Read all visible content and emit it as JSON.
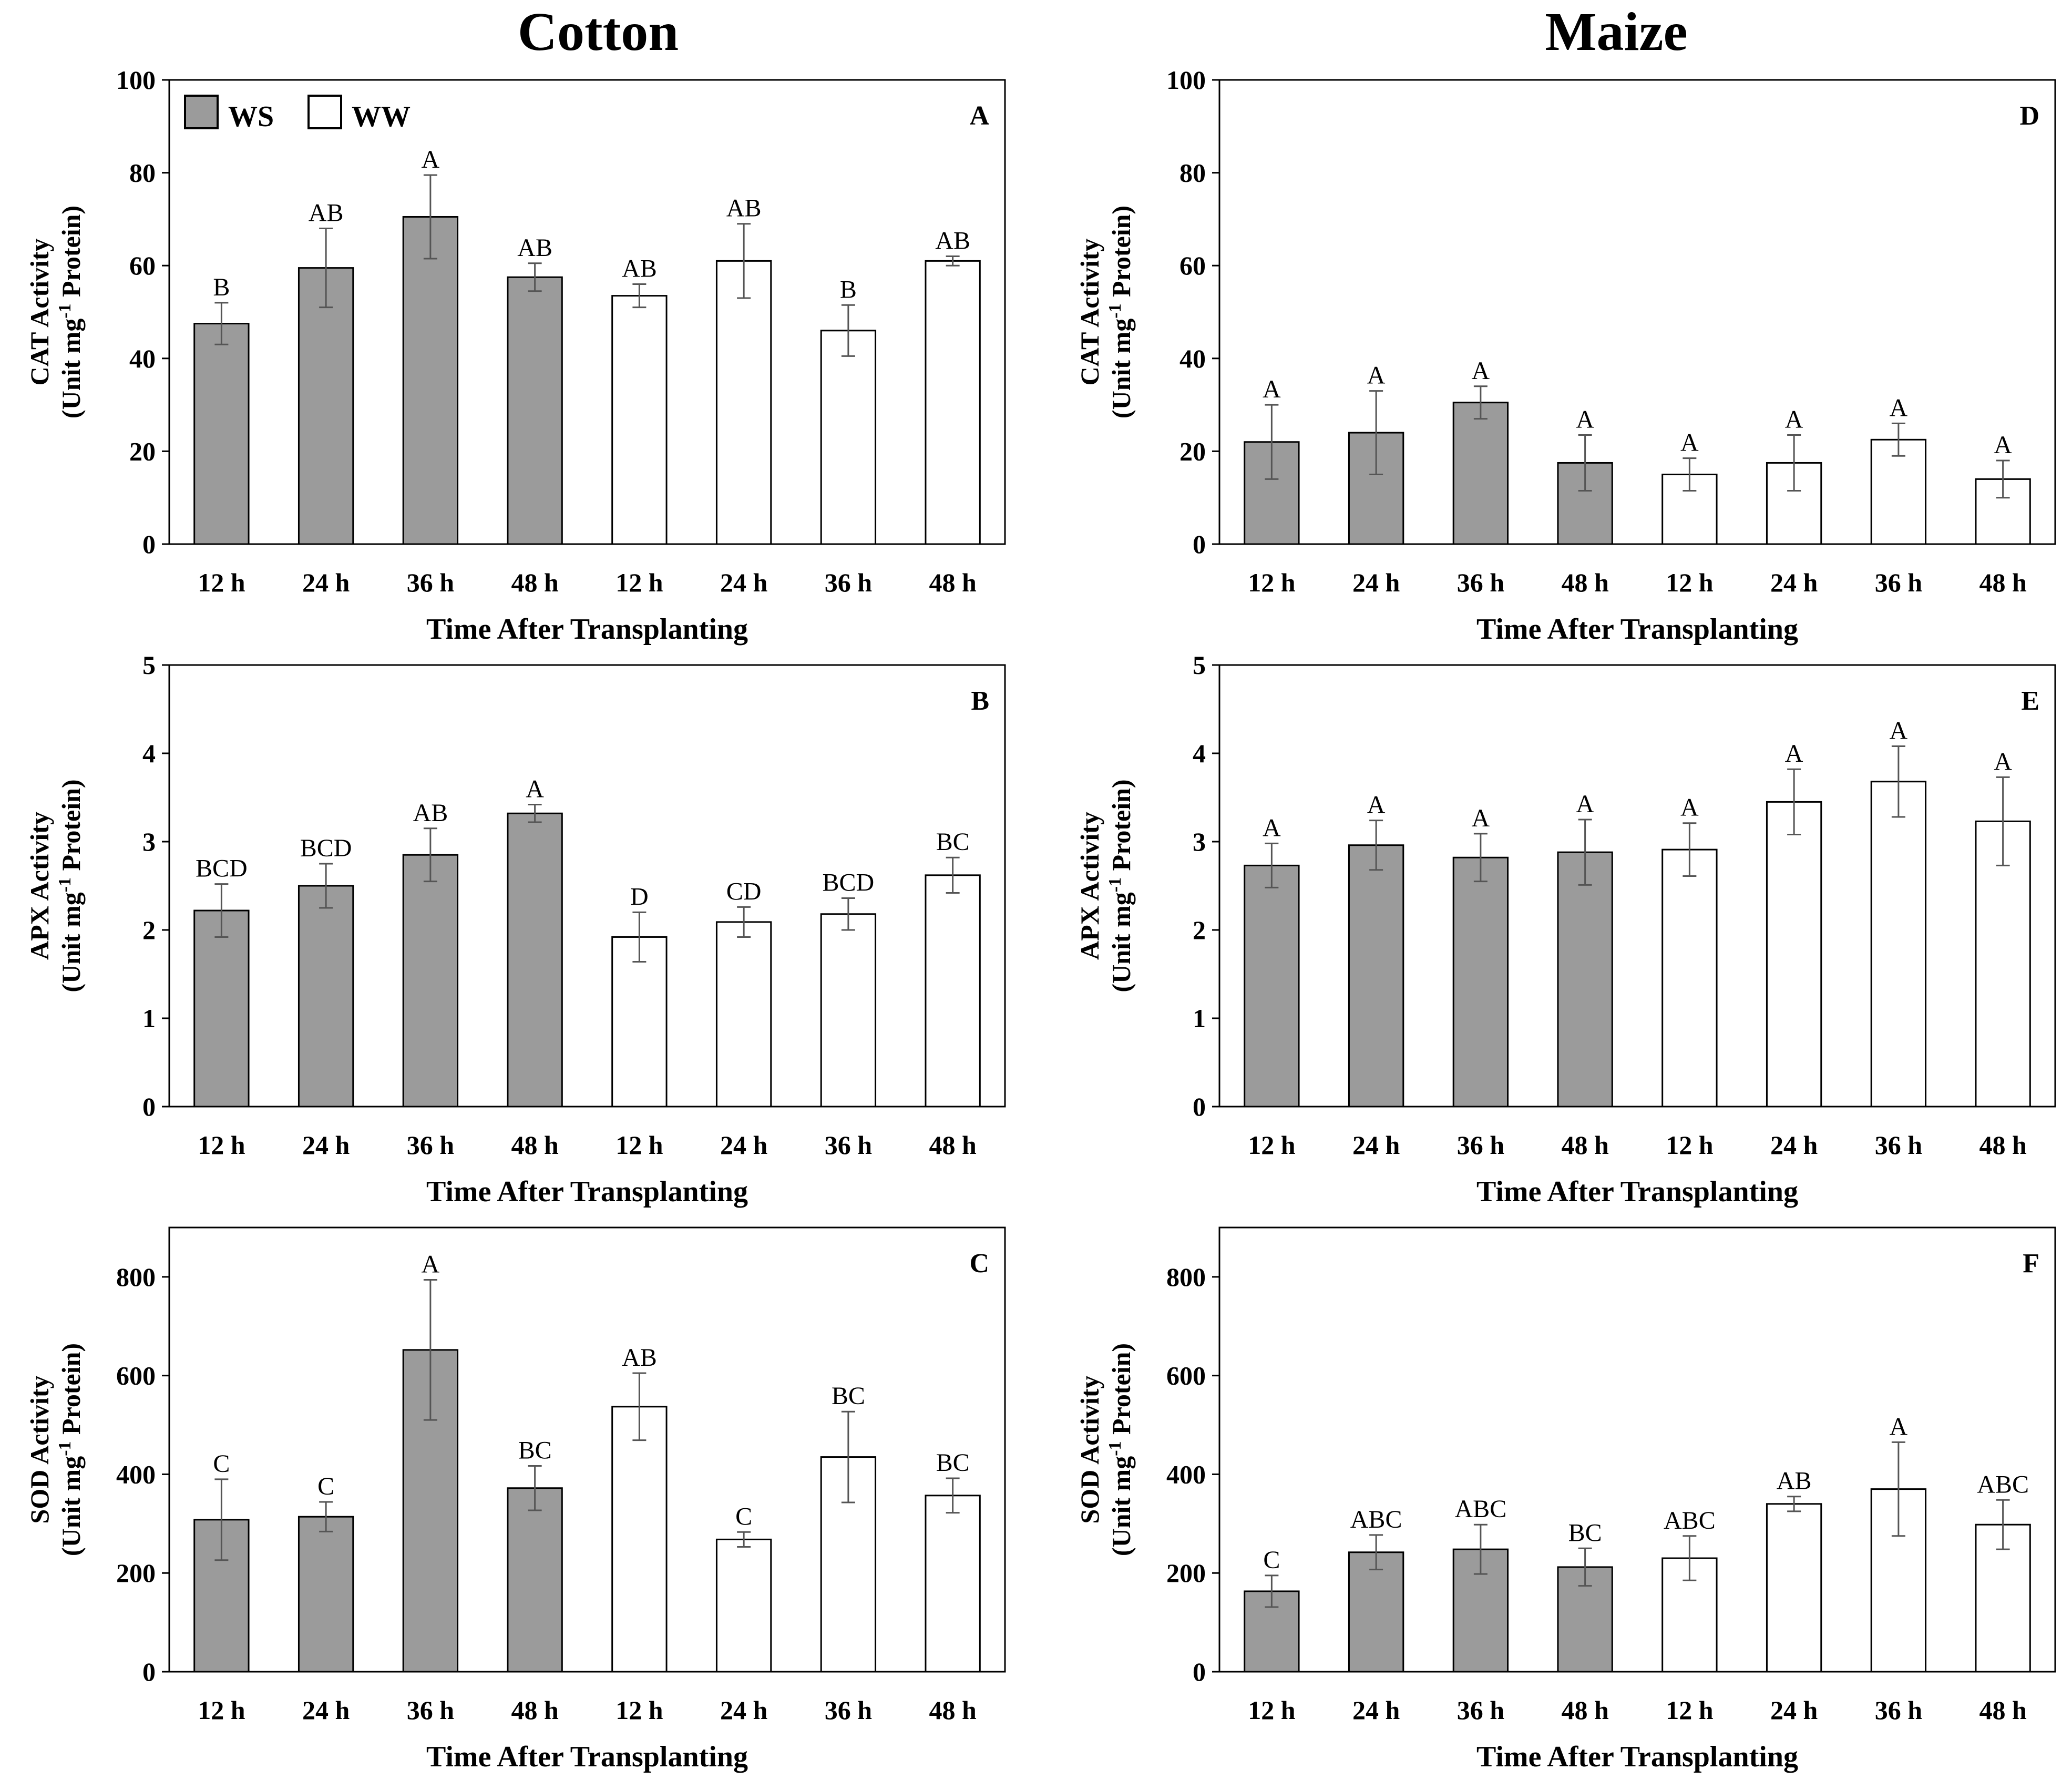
{
  "figure": {
    "column_titles": [
      "Cotton",
      "Maize"
    ],
    "legend": [
      {
        "name": "WS",
        "label": "WS",
        "color": "#9b9b9b"
      },
      {
        "name": "WW",
        "label": "WW",
        "color": "#ffffff"
      }
    ]
  },
  "chart_data": [
    {
      "type": "bar",
      "panel": "A",
      "crop": "Cotton",
      "title": "",
      "xlabel": "Time After Transplanting",
      "ylabel_line1": "CAT Activity",
      "ylabel_line2_pre": "(Unit mg",
      "ylabel_sup": "-1",
      "ylabel_line2_post": " Protein)",
      "ylim": [
        0,
        100
      ],
      "yticks": [
        0,
        20,
        40,
        60,
        80,
        100
      ],
      "categories": [
        "12 h",
        "24 h",
        "36 h",
        "48 h",
        "12 h",
        "24 h",
        "36 h",
        "48 h"
      ],
      "groups": [
        "WS",
        "WS",
        "WS",
        "WS",
        "WW",
        "WW",
        "WW",
        "WW"
      ],
      "values": [
        47.5,
        59.5,
        70.5,
        57.5,
        53.5,
        61,
        46,
        61
      ],
      "errors": [
        4.5,
        8.5,
        9,
        3,
        2.5,
        8,
        5.5,
        1
      ],
      "letters": [
        "B",
        "AB",
        "A",
        "AB",
        "AB",
        "AB",
        "B",
        "AB"
      ]
    },
    {
      "type": "bar",
      "panel": "B",
      "crop": "Cotton",
      "title": "",
      "xlabel": "Time After Transplanting",
      "ylabel_line1": "APX Activity",
      "ylabel_line2_pre": "(Unit mg",
      "ylabel_sup": "-1",
      "ylabel_line2_post": " Protein)",
      "ylim": [
        0,
        5
      ],
      "yticks": [
        0,
        1,
        2,
        3,
        4,
        5
      ],
      "categories": [
        "12 h",
        "24 h",
        "36 h",
        "48 h",
        "12 h",
        "24 h",
        "36 h",
        "48 h"
      ],
      "groups": [
        "WS",
        "WS",
        "WS",
        "WS",
        "WW",
        "WW",
        "WW",
        "WW"
      ],
      "values": [
        2.22,
        2.5,
        2.85,
        3.32,
        1.92,
        2.09,
        2.18,
        2.62
      ],
      "errors": [
        0.3,
        0.25,
        0.3,
        0.1,
        0.28,
        0.17,
        0.18,
        0.2
      ],
      "letters": [
        "BCD",
        "BCD",
        "AB",
        "A",
        "D",
        "CD",
        "BCD",
        "BC"
      ]
    },
    {
      "type": "bar",
      "panel": "C",
      "crop": "Cotton",
      "title": "",
      "xlabel": "Time After Transplanting",
      "ylabel_line1": "SOD Activity",
      "ylabel_line2_pre": "(Unit mg",
      "ylabel_sup": "-1",
      "ylabel_line2_post": " Protein)",
      "ylim": [
        0,
        900
      ],
      "yticks": [
        0,
        200,
        400,
        600,
        800
      ],
      "categories": [
        "12 h",
        "24 h",
        "36 h",
        "48 h",
        "12 h",
        "24 h",
        "36 h",
        "48 h"
      ],
      "groups": [
        "WS",
        "WS",
        "WS",
        "WS",
        "WW",
        "WW",
        "WW",
        "WW"
      ],
      "values": [
        308,
        314,
        652,
        372,
        537,
        268,
        435,
        357
      ],
      "errors": [
        82,
        30,
        142,
        45,
        68,
        15,
        92,
        35
      ],
      "letters": [
        "C",
        "C",
        "A",
        "BC",
        "AB",
        "C",
        "BC",
        "BC"
      ]
    },
    {
      "type": "bar",
      "panel": "D",
      "crop": "Maize",
      "title": "",
      "xlabel": "Time After Transplanting",
      "ylabel_line1": "CAT Activity",
      "ylabel_line2_pre": "(Unit mg",
      "ylabel_sup": "-1",
      "ylabel_line2_post": " Protein)",
      "ylim": [
        0,
        100
      ],
      "yticks": [
        0,
        20,
        40,
        60,
        80,
        100
      ],
      "categories": [
        "12 h",
        "24 h",
        "36 h",
        "48 h",
        "12 h",
        "24 h",
        "36 h",
        "48 h"
      ],
      "groups": [
        "WS",
        "WS",
        "WS",
        "WS",
        "WW",
        "WW",
        "WW",
        "WW"
      ],
      "values": [
        22,
        24,
        30.5,
        17.5,
        15,
        17.5,
        22.5,
        14
      ],
      "errors": [
        8,
        9,
        3.5,
        6,
        3.5,
        6,
        3.5,
        4
      ],
      "letters": [
        "A",
        "A",
        "A",
        "A",
        "A",
        "A",
        "A",
        "A"
      ]
    },
    {
      "type": "bar",
      "panel": "E",
      "crop": "Maize",
      "title": "",
      "xlabel": "Time After Transplanting",
      "ylabel_line1": "APX Activity",
      "ylabel_line2_pre": "(Unit mg",
      "ylabel_sup": "-1",
      "ylabel_line2_post": " Protein)",
      "ylim": [
        0,
        5
      ],
      "yticks": [
        0,
        1,
        2,
        3,
        4,
        5
      ],
      "categories": [
        "12 h",
        "24 h",
        "36 h",
        "48 h",
        "12 h",
        "24 h",
        "36 h",
        "48 h"
      ],
      "groups": [
        "WS",
        "WS",
        "WS",
        "WS",
        "WW",
        "WW",
        "WW",
        "WW"
      ],
      "values": [
        2.73,
        2.96,
        2.82,
        2.88,
        2.91,
        3.45,
        3.68,
        3.23
      ],
      "errors": [
        0.25,
        0.28,
        0.27,
        0.37,
        0.3,
        0.37,
        0.4,
        0.5
      ],
      "letters": [
        "A",
        "A",
        "A",
        "A",
        "A",
        "A",
        "A",
        "A"
      ]
    },
    {
      "type": "bar",
      "panel": "F",
      "crop": "Maize",
      "title": "",
      "xlabel": "Time After Transplanting",
      "ylabel_line1": "SOD Activity",
      "ylabel_line2_pre": "(Unit mg",
      "ylabel_sup": "-1",
      "ylabel_line2_post": " Protein)",
      "ylim": [
        0,
        900
      ],
      "yticks": [
        0,
        200,
        400,
        600,
        800
      ],
      "categories": [
        "12 h",
        "24 h",
        "36 h",
        "48 h",
        "12 h",
        "24 h",
        "36 h",
        "48 h"
      ],
      "groups": [
        "WS",
        "WS",
        "WS",
        "WS",
        "WW",
        "WW",
        "WW",
        "WW"
      ],
      "values": [
        163,
        242,
        248,
        212,
        230,
        340,
        370,
        298
      ],
      "errors": [
        32,
        35,
        50,
        38,
        45,
        15,
        95,
        50
      ],
      "letters": [
        "C",
        "ABC",
        "ABC",
        "BC",
        "ABC",
        "AB",
        "A",
        "ABC"
      ]
    }
  ]
}
